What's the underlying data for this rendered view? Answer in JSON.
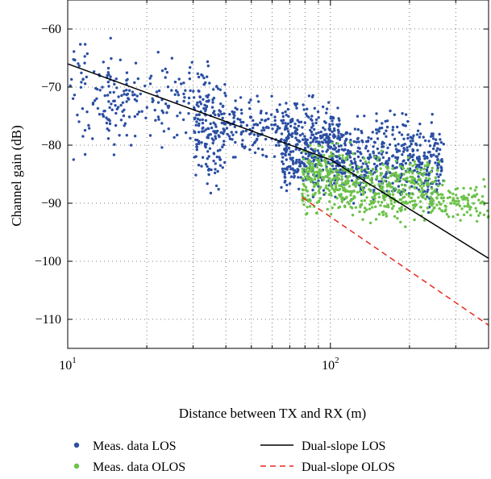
{
  "chart_data": {
    "type": "scatter",
    "title": "",
    "xlabel": "Distance between TX and RX (m)",
    "ylabel": "Channel gain (dB)",
    "xscale": "log",
    "xlim": [
      10,
      400
    ],
    "ylim": [
      -115,
      -55
    ],
    "xticks": [
      10,
      100
    ],
    "xtick_labels": [
      {
        "base": "10",
        "exp": "1"
      },
      {
        "base": "10",
        "exp": "2"
      }
    ],
    "yticks": [
      -110,
      -100,
      -90,
      -80,
      -70,
      -60
    ],
    "ytick_labels": [
      "−110",
      "−100",
      "−90",
      "−80",
      "−70",
      "−60"
    ],
    "grid": true,
    "legend_position": "bottom",
    "colors": {
      "los": "#2b4fa3",
      "olos": "#6cc24a",
      "dual_los": "#000000",
      "dual_olos": "#e8281e"
    },
    "series": [
      {
        "name": "Meas. data LOS",
        "kind": "scatter",
        "color": "#2b4fa3",
        "clusters": [
          {
            "x_range": [
              10,
              17
            ],
            "y_range": [
              -86,
              -58
            ],
            "count": 80
          },
          {
            "x_range": [
              14,
              35
            ],
            "y_range": [
              -82,
              -62
            ],
            "count": 150
          },
          {
            "x_range": [
              30,
              40
            ],
            "y_range": [
              -90,
              -65
            ],
            "count": 150
          },
          {
            "x_range": [
              40,
              65
            ],
            "y_range": [
              -84,
              -70
            ],
            "count": 120
          },
          {
            "x_range": [
              65,
              110
            ],
            "y_range": [
              -92,
              -70
            ],
            "count": 420
          },
          {
            "x_range": [
              110,
              270
            ],
            "y_range": [
              -93,
              -72
            ],
            "count": 460
          }
        ]
      },
      {
        "name": "Meas. data OLOS",
        "kind": "scatter",
        "color": "#6cc24a",
        "clusters": [
          {
            "x_range": [
              78,
              120
            ],
            "y_range": [
              -94,
              -78
            ],
            "count": 250
          },
          {
            "x_range": [
              120,
              260
            ],
            "y_range": [
              -95,
              -80
            ],
            "count": 330
          },
          {
            "x_range": [
              260,
              400
            ],
            "y_range": [
              -95,
              -85
            ],
            "count": 90
          }
        ]
      },
      {
        "name": "Dual-slope LOS",
        "kind": "line",
        "color": "#000000",
        "dash": "solid",
        "x": [
          10,
          100,
          400
        ],
        "y": [
          -66,
          -82.5,
          -99.5
        ]
      },
      {
        "name": "Dual-slope OLOS",
        "kind": "line",
        "color": "#e8281e",
        "dash": "dashed",
        "x": [
          78,
          400
        ],
        "y": [
          -89,
          -111
        ]
      }
    ]
  }
}
